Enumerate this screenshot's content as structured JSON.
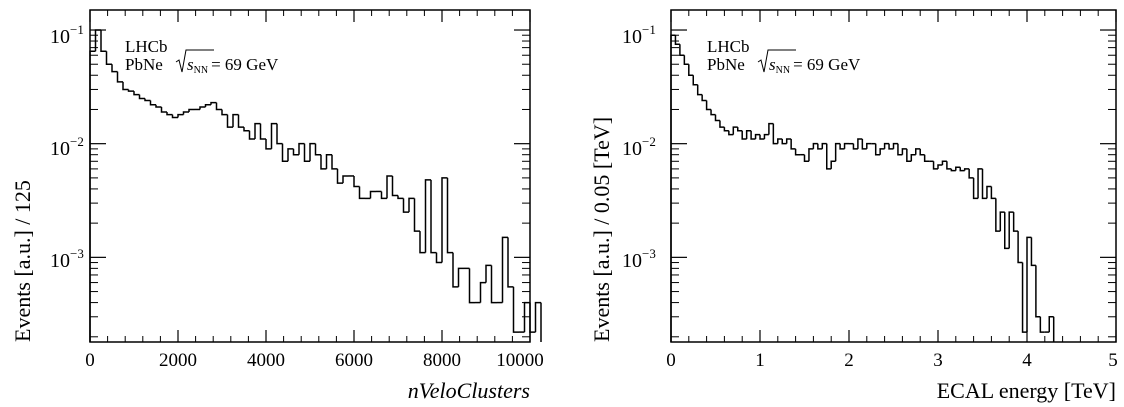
{
  "chart_data": [
    {
      "type": "histogram",
      "log_scale_y": true,
      "ylabel": "Events [a.u.] / 125",
      "xlabel": "nVeloClusters",
      "xlim": [
        0,
        10000
      ],
      "ylim": [
        0.00018,
        0.15
      ],
      "x_ticks": [
        "0",
        "2000",
        "4000",
        "6000",
        "8000",
        "10000"
      ],
      "y_ticks": [
        {
          "base": "10",
          "exp": "−1"
        },
        {
          "base": "10",
          "exp": "−2"
        },
        {
          "base": "10",
          "exp": "−3"
        }
      ],
      "annotation": {
        "experiment": "LHCb",
        "system": "PbNe",
        "energy": "= 69 GeV",
        "sqrt_s_sub": "NN"
      },
      "bin_width": 125,
      "values": [
        0.065,
        0.1,
        0.065,
        0.05,
        0.043,
        0.035,
        0.03,
        0.029,
        0.027,
        0.025,
        0.024,
        0.022,
        0.021,
        0.019,
        0.018,
        0.017,
        0.018,
        0.019,
        0.02,
        0.02,
        0.021,
        0.022,
        0.023,
        0.02,
        0.018,
        0.014,
        0.018,
        0.014,
        0.013,
        0.011,
        0.015,
        0.011,
        0.009,
        0.015,
        0.01,
        0.007,
        0.009,
        0.008,
        0.01,
        0.007,
        0.01,
        0.008,
        0.006,
        0.008,
        0.006,
        0.0045,
        0.0052,
        0.0052,
        0.0042,
        0.0033,
        0.0033,
        0.0038,
        0.0038,
        0.0033,
        0.0052,
        0.0035,
        0.0033,
        0.0025,
        0.0033,
        0.0017,
        0.0011,
        0.0048,
        0.0011,
        0.0009,
        0.005,
        0.0011,
        0.00055,
        0.0008,
        0.0008,
        0.0004,
        0.0004,
        0.0006,
        0.00085,
        0.0004,
        0.0004,
        0.0015,
        0.00055,
        0.00022,
        0.00022,
        0.0004,
        0.00022,
        0.0004
      ]
    },
    {
      "type": "histogram",
      "log_scale_y": true,
      "ylabel": "Events [a.u.] / 0.05 [TeV]",
      "xlabel": "ECAL energy [TeV]",
      "xlim": [
        0,
        5
      ],
      "ylim": [
        0.00018,
        0.15
      ],
      "x_ticks": [
        "0",
        "1",
        "2",
        "3",
        "4",
        "5"
      ],
      "y_ticks": [
        {
          "base": "10",
          "exp": "−1"
        },
        {
          "base": "10",
          "exp": "−2"
        },
        {
          "base": "10",
          "exp": "−3"
        }
      ],
      "annotation": {
        "experiment": "LHCb",
        "system": "PbNe",
        "energy": "= 69 GeV",
        "sqrt_s_sub": "NN"
      },
      "bin_width": 0.05,
      "values": [
        0.09,
        0.075,
        0.06,
        0.05,
        0.04,
        0.033,
        0.027,
        0.024,
        0.02,
        0.018,
        0.016,
        0.014,
        0.013,
        0.012,
        0.014,
        0.013,
        0.011,
        0.013,
        0.011,
        0.012,
        0.011,
        0.012,
        0.015,
        0.01,
        0.011,
        0.01,
        0.011,
        0.009,
        0.008,
        0.008,
        0.007,
        0.009,
        0.01,
        0.009,
        0.01,
        0.006,
        0.007,
        0.01,
        0.009,
        0.01,
        0.01,
        0.009,
        0.011,
        0.009,
        0.01,
        0.01,
        0.008,
        0.009,
        0.01,
        0.009,
        0.01,
        0.008,
        0.009,
        0.007,
        0.008,
        0.009,
        0.008,
        0.007,
        0.007,
        0.006,
        0.0065,
        0.007,
        0.006,
        0.0058,
        0.0062,
        0.0058,
        0.006,
        0.005,
        0.0033,
        0.006,
        0.0033,
        0.0042,
        0.0033,
        0.0017,
        0.0025,
        0.0012,
        0.0025,
        0.0017,
        0.0009,
        0.00022,
        0.0015,
        0.00085,
        0.0003,
        0.00022,
        0.00022,
        0.0003
      ]
    }
  ]
}
